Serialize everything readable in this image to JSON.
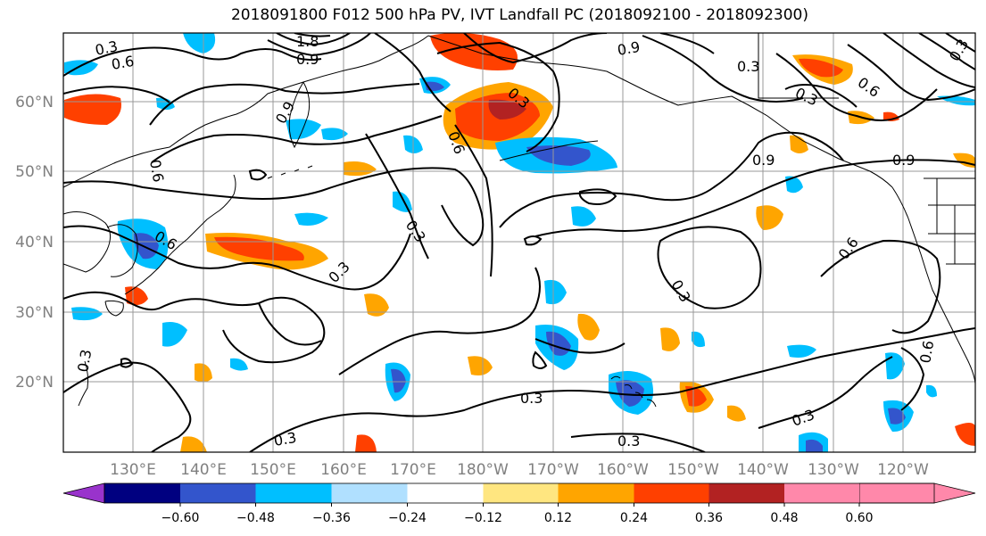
{
  "title": "2018091800 F012 500 hPa PV, IVT Landfall PC (2018092100 - 2018092300)",
  "lat_labels": [
    "60°N",
    "50°N",
    "40°N",
    "30°N",
    "20°N"
  ],
  "lon_labels": [
    "130°E",
    "140°E",
    "150°E",
    "160°E",
    "170°E",
    "180°W",
    "170°W",
    "160°W",
    "150°W",
    "140°W",
    "130°W",
    "120°W"
  ],
  "colorbar": {
    "colors": [
      "#9933cc",
      "#000080",
      "#3355cc",
      "#00bfff",
      "#b0e0ff",
      "#ffffff",
      "#ffe680",
      "#ffa500",
      "#ff4000",
      "#b22222",
      "#ff88aa"
    ],
    "tick_labels": [
      "−0.60",
      "−0.48",
      "−0.36",
      "−0.24",
      "−0.12",
      "0.12",
      "0.24",
      "0.36",
      "0.48",
      "0.60"
    ]
  },
  "contour_labels": [
    "0.3",
    "0.6",
    "0.9",
    "1.8",
    "0.9",
    "0.3",
    "0.9",
    "0.6",
    "0.3",
    "0.6",
    "0.9",
    "0.9",
    "0.3",
    "0.6",
    "0.6",
    "0.3",
    "0.3",
    "0.3",
    "0.3",
    "0.3",
    "0.3",
    "0.3",
    "0.6",
    "0.3",
    "0.6",
    "0.3"
  ],
  "map_style": {
    "grid_color": "#999999",
    "contour_color": "#000000"
  }
}
